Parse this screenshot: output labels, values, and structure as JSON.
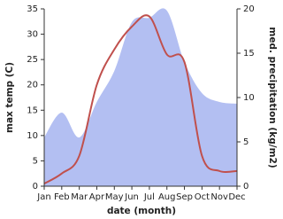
{
  "chart_data": {
    "type": "line",
    "x_label": "date (month)",
    "y_label": "max temp (C)",
    "y2_label": "med. precipitation (kg/m2)",
    "categories": [
      "Jan",
      "Feb",
      "Mar",
      "Apr",
      "May",
      "Jun",
      "Jul",
      "Aug",
      "Sep",
      "Oct",
      "Nov",
      "Dec"
    ],
    "series": [
      {
        "type": "area",
        "axis": "y2",
        "color": "#b3bff2",
        "values": [
          5.5,
          8.3,
          5.5,
          9.5,
          13,
          18.5,
          19,
          19.8,
          14,
          10.5,
          9.5,
          9.3
        ]
      },
      {
        "type": "line",
        "axis": "y",
        "color": "#c0504d",
        "values": [
          0.5,
          2.5,
          6,
          20,
          27,
          31.5,
          33.5,
          26,
          24.5,
          6,
          3,
          3
        ]
      }
    ],
    "ylim": [
      0,
      35
    ],
    "yticks": [
      0,
      5,
      10,
      15,
      20,
      25,
      30,
      35
    ],
    "y2lim": [
      0,
      20
    ],
    "y2ticks": [
      0,
      5,
      10,
      15,
      20
    ]
  }
}
